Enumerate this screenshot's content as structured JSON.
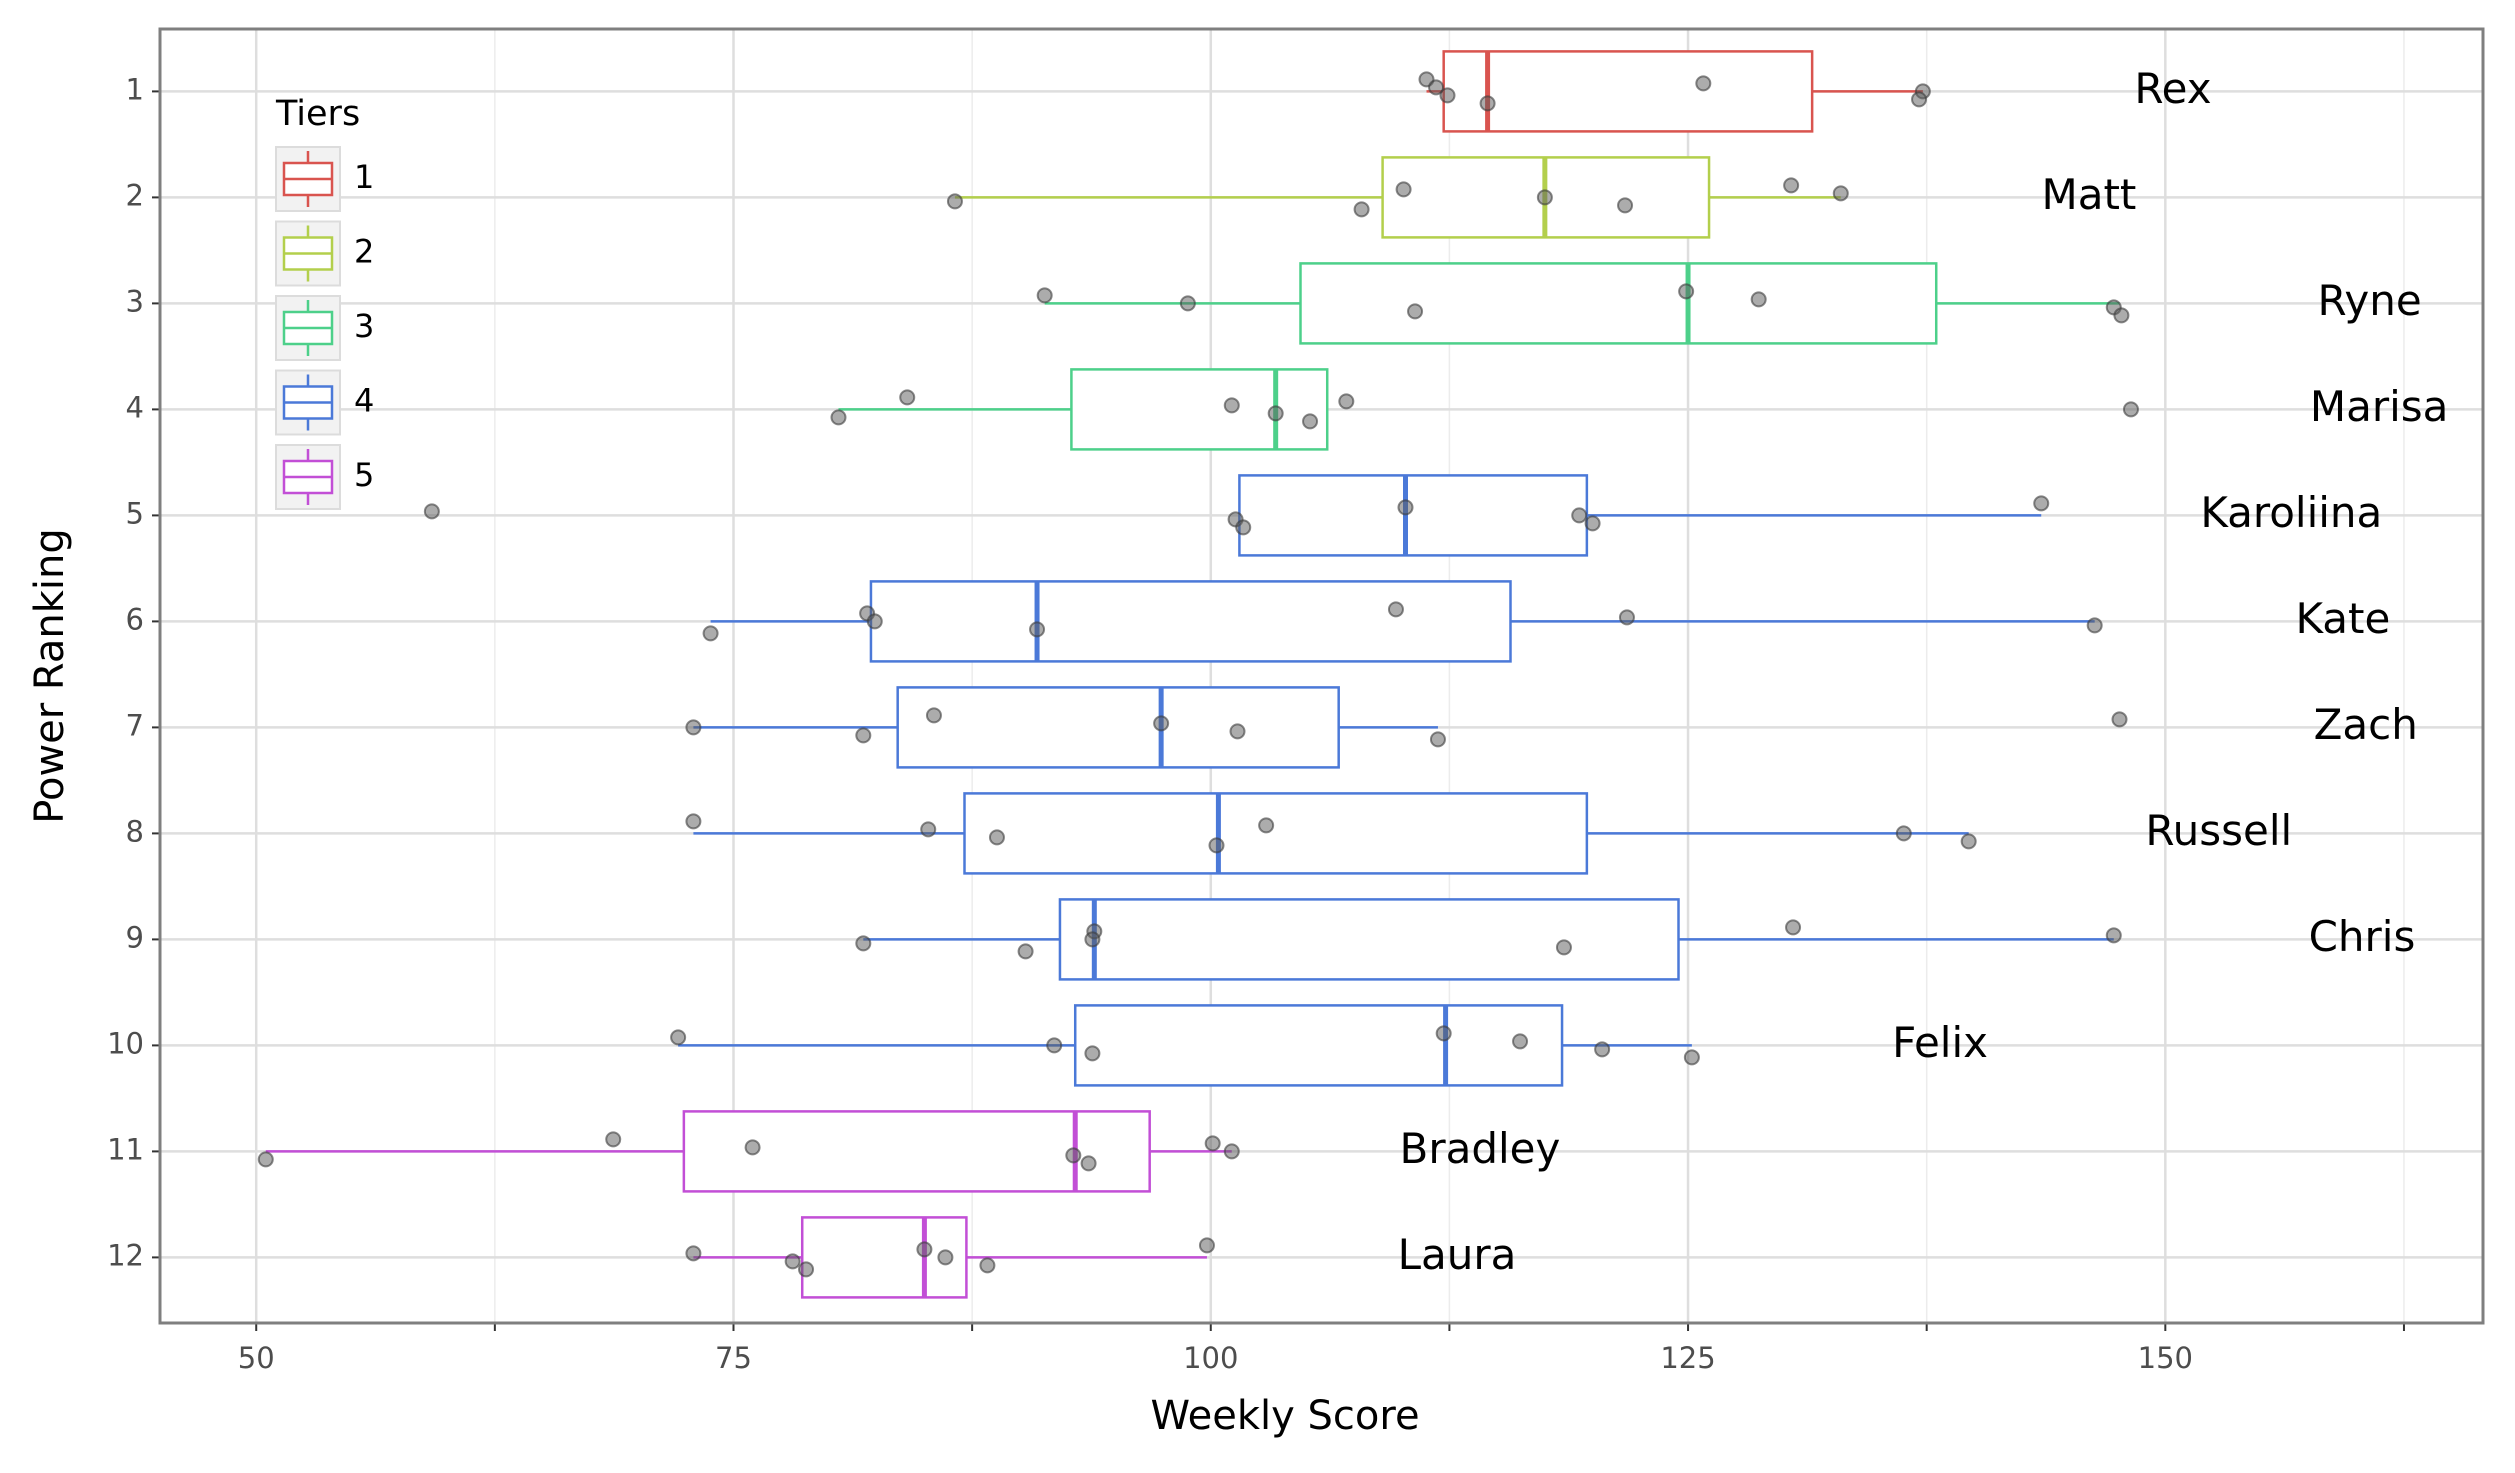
{
  "chart_data": {
    "type": "boxplot",
    "xlabel": "Weekly Score",
    "ylabel": "Power Ranking",
    "categories": [
      "1",
      "2",
      "3",
      "4",
      "5",
      "6",
      "7",
      "8",
      "9",
      "10",
      "11",
      "12"
    ],
    "xlim": [
      44.96,
      166.64
    ],
    "xticks": [
      50,
      75,
      100,
      125,
      150
    ],
    "xminor": [
      62.5,
      87.5,
      112.5,
      137.5,
      162.5
    ],
    "grid": true,
    "legend": {
      "title": "Tiers",
      "position": "upper-left"
    },
    "tiers": [
      {
        "name": "1",
        "color": "#d9544f"
      },
      {
        "name": "2",
        "color": "#b3cf4c"
      },
      {
        "name": "3",
        "color": "#4dd08a"
      },
      {
        "name": "4",
        "color": "#4b79d8"
      },
      {
        "name": "5",
        "color": "#c24fd6"
      }
    ],
    "boxes": [
      {
        "name": "Rex",
        "tier": 1,
        "whisker_low": 111.3,
        "q1": 112.2,
        "median": 114.5,
        "q3": 131.5,
        "whisker_high": 137.3,
        "points": [
          111.3,
          111.8,
          112.4,
          114.5,
          125.8,
          137.3,
          137.1
        ],
        "label_x": 150.4
      },
      {
        "name": "Matt",
        "tier": 2,
        "whisker_low": 86.6,
        "q1": 109.0,
        "median": 117.5,
        "q3": 126.1,
        "whisker_high": 133.0,
        "points": [
          86.6,
          107.9,
          110.1,
          117.5,
          121.7,
          130.4,
          133.0
        ],
        "label_x": 146.0
      },
      {
        "name": "Ryne",
        "tier": 3,
        "whisker_low": 91.3,
        "q1": 104.7,
        "median": 125.0,
        "q3": 138.0,
        "whisker_high": 147.6,
        "points": [
          91.3,
          98.8,
          110.7,
          124.9,
          128.7,
          147.3,
          147.7
        ],
        "label_x": 160.7
      },
      {
        "name": "Marisa",
        "tier": 3,
        "whisker_low": 80.5,
        "q1": 92.7,
        "median": 103.4,
        "q3": 106.1,
        "whisker_high": 106.1,
        "points": [
          80.5,
          84.1,
          101.1,
          103.4,
          105.2,
          107.1,
          148.2
        ],
        "label_x": 161.2
      },
      {
        "name": "Karoliina",
        "tier": 4,
        "whisker_low": 101.5,
        "q1": 101.5,
        "median": 110.2,
        "q3": 119.7,
        "whisker_high": 143.5,
        "points": [
          59.2,
          101.3,
          101.7,
          110.2,
          119.3,
          120.0,
          143.5
        ],
        "label_x": 156.6
      },
      {
        "name": "Kate",
        "tier": 4,
        "whisker_low": 73.8,
        "q1": 82.2,
        "median": 90.9,
        "q3": 115.7,
        "whisker_high": 146.3,
        "points": [
          73.8,
          82.0,
          82.4,
          90.9,
          109.7,
          121.8,
          146.3
        ],
        "label_x": 159.3
      },
      {
        "name": "Zach",
        "tier": 4,
        "whisker_low": 72.9,
        "q1": 83.6,
        "median": 97.4,
        "q3": 106.7,
        "whisker_high": 111.9,
        "points": [
          72.9,
          81.8,
          85.5,
          97.4,
          101.4,
          111.9,
          147.6
        ],
        "label_x": 160.5
      },
      {
        "name": "Russell",
        "tier": 4,
        "whisker_low": 72.9,
        "q1": 87.1,
        "median": 100.4,
        "q3": 119.7,
        "whisker_high": 139.7,
        "points": [
          72.9,
          85.2,
          88.8,
          100.3,
          102.9,
          136.3,
          139.7
        ],
        "label_x": 152.8
      },
      {
        "name": "Chris",
        "tier": 4,
        "whisker_low": 81.8,
        "q1": 92.1,
        "median": 93.9,
        "q3": 124.5,
        "whisker_high": 147.3,
        "points": [
          81.8,
          90.3,
          93.9,
          93.8,
          118.5,
          130.5,
          147.3
        ],
        "label_x": 160.3
      },
      {
        "name": "Felix",
        "tier": 4,
        "whisker_low": 72.1,
        "q1": 92.9,
        "median": 112.3,
        "q3": 118.4,
        "whisker_high": 125.2,
        "points": [
          72.1,
          91.8,
          93.8,
          112.2,
          116.2,
          120.5,
          125.2
        ],
        "label_x": 138.2
      },
      {
        "name": "Bradley",
        "tier": 5,
        "whisker_low": 50.5,
        "q1": 72.4,
        "median": 92.9,
        "q3": 96.8,
        "whisker_high": 101.1,
        "points": [
          50.5,
          68.7,
          76.0,
          92.8,
          93.6,
          100.1,
          101.1
        ],
        "label_x": 114.1
      },
      {
        "name": "Laura",
        "tier": 5,
        "whisker_low": 72.9,
        "q1": 78.6,
        "median": 85.0,
        "q3": 87.2,
        "whisker_high": 99.8,
        "points": [
          72.9,
          78.1,
          78.8,
          85.0,
          86.1,
          88.3,
          99.8
        ],
        "label_x": 112.9
      }
    ]
  }
}
